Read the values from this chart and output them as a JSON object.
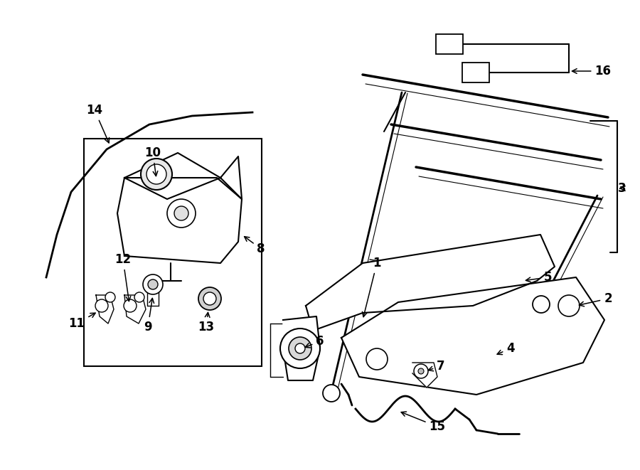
{
  "bg_color": "#ffffff",
  "line_color": "#000000",
  "fig_width": 9.0,
  "fig_height": 6.61,
  "dpi": 100,
  "label_fontsize": 12
}
